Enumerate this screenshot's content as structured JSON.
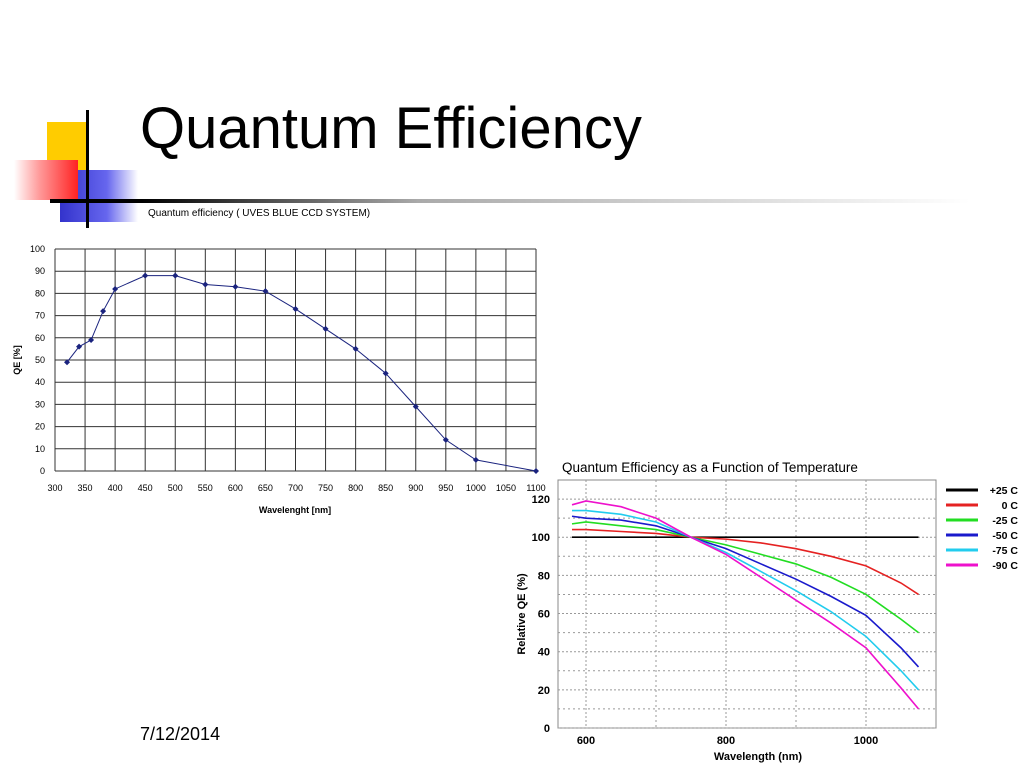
{
  "slide": {
    "title": "Quantum Efficiency",
    "date": "7/12/2014"
  },
  "colors": {
    "deco_yellow": "#ffcc00",
    "deco_red": "#ff3333",
    "deco_blue": "#3333cc",
    "line_black": "#000000"
  },
  "chart_data": [
    {
      "type": "line",
      "title": "Quantum efficiency  ( UVES  BLUE CCD SYSTEM)",
      "xlabel": "Wavelenght [nm]",
      "ylabel": "QE [%]",
      "xlim": [
        300,
        1100
      ],
      "ylim": [
        0,
        100
      ],
      "xticks": [
        300,
        350,
        400,
        450,
        500,
        550,
        600,
        650,
        700,
        750,
        800,
        850,
        900,
        950,
        1000,
        1050,
        1100
      ],
      "yticks": [
        0,
        10,
        20,
        30,
        40,
        50,
        60,
        70,
        80,
        90,
        100
      ],
      "grid": true,
      "series_color": "#1a237e",
      "x": [
        320,
        340,
        360,
        380,
        400,
        450,
        500,
        550,
        600,
        650,
        700,
        750,
        800,
        850,
        900,
        950,
        1000,
        1100
      ],
      "y": [
        49,
        56,
        59,
        72,
        82,
        88,
        88,
        84,
        83,
        81,
        73,
        64,
        55,
        44,
        29,
        14,
        5,
        0
      ]
    },
    {
      "type": "line",
      "title": "Quantum Efficiency as a Function of Temperature",
      "xlabel": "Wavelength (nm)",
      "ylabel": "Relative QE (%)",
      "xlim": [
        560,
        1100
      ],
      "ylim": [
        0,
        130
      ],
      "xticks": [
        600,
        800,
        1000
      ],
      "yticks": [
        0,
        20,
        40,
        60,
        80,
        100,
        120
      ],
      "grid": true,
      "legend_position": "right",
      "x": [
        580,
        600,
        650,
        700,
        750,
        800,
        850,
        900,
        950,
        1000,
        1050,
        1075
      ],
      "series": [
        {
          "name": "+25 C",
          "color": "#000000",
          "values": [
            100,
            100,
            100,
            100,
            100,
            100,
            100,
            100,
            100,
            100,
            100,
            100
          ]
        },
        {
          "name": "0 C",
          "color": "#e52222",
          "values": [
            104,
            104,
            103,
            102,
            100,
            99,
            97,
            94,
            90,
            85,
            76,
            70
          ]
        },
        {
          "name": "-25 C",
          "color": "#22dd22",
          "values": [
            107,
            108,
            106,
            104,
            100,
            96,
            91,
            86,
            79,
            70,
            57,
            50
          ]
        },
        {
          "name": "-50 C",
          "color": "#1a1acc",
          "values": [
            111,
            110,
            109,
            106,
            100,
            94,
            86,
            78,
            69,
            59,
            42,
            32
          ]
        },
        {
          "name": "-75 C",
          "color": "#22ccee",
          "values": [
            114,
            114,
            112,
            108,
            100,
            92,
            82,
            72,
            61,
            48,
            30,
            20
          ]
        },
        {
          "name": "-90 C",
          "color": "#ee11cc",
          "values": [
            117,
            119,
            116,
            110,
            100,
            91,
            79,
            67,
            55,
            42,
            21,
            10
          ]
        }
      ]
    }
  ]
}
